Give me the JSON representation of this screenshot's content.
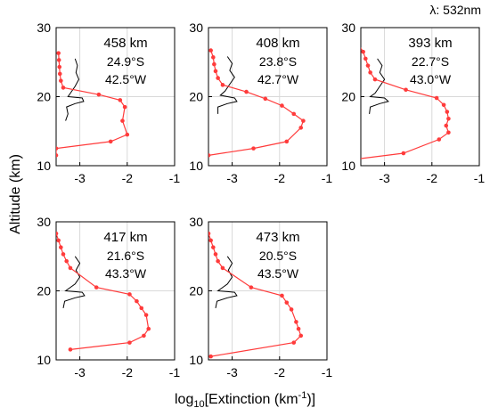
{
  "wavelength_label": "λ: 532nm",
  "ylabel": "Altitude (km)",
  "xlabel_prefix": "log",
  "xlabel_sub": "10",
  "xlabel_main": "[Extinction (km",
  "xlabel_sup": "-1",
  "xlabel_suffix": ")]",
  "colors": {
    "profile_red": "#ff3b3b",
    "reference_black": "#000000",
    "grid": "#d9d9d9"
  },
  "chart_data": [
    {
      "type": "line",
      "distance": "458 km",
      "lat": "24.9°S",
      "lon": "42.5°W",
      "xlim": [
        -3.5,
        -1
      ],
      "ylim": [
        10,
        30
      ],
      "xticks": [
        "-3",
        "-2",
        "-1"
      ],
      "yticks": [
        "10",
        "20",
        "30"
      ],
      "red_series": {
        "x": [
          -3.45,
          -3.44,
          -3.43,
          -3.42,
          -3.4,
          -3.35,
          -2.6,
          -2.15,
          -2.05,
          -2.1,
          -2.0,
          -2.35,
          -3.5,
          -3.5
        ],
        "y": [
          26.3,
          25.3,
          24.3,
          23.3,
          22.3,
          21.3,
          20.3,
          19.5,
          18.5,
          16.5,
          14.5,
          13.5,
          12.5,
          11.5
        ]
      },
      "black_series": {
        "x": [
          -3.1,
          -3.05,
          -3.08,
          -3.02,
          -3.1,
          -3.2,
          -3.25,
          -2.95,
          -2.92,
          -3.1,
          -3.28,
          -3.25,
          -3.3
        ],
        "y": [
          25.5,
          24.5,
          23.5,
          22.5,
          21.5,
          20.5,
          20.0,
          19.8,
          19.3,
          19.0,
          18.5,
          17.5,
          16.5
        ]
      }
    },
    {
      "type": "line",
      "distance": "408 km",
      "lat": "23.8°S",
      "lon": "42.7°W",
      "xlim": [
        -3.5,
        -1
      ],
      "ylim": [
        10,
        30
      ],
      "xticks": [
        "-3",
        "-2",
        "-1"
      ],
      "yticks": [
        "10",
        "20",
        "30"
      ],
      "red_series": {
        "x": [
          -3.45,
          -3.4,
          -3.38,
          -3.35,
          -3.3,
          -3.2,
          -2.7,
          -2.3,
          -1.95,
          -1.7,
          -1.5,
          -1.55,
          -1.85,
          -2.55,
          -3.5
        ],
        "y": [
          26.7,
          25.7,
          24.7,
          23.7,
          22.7,
          21.7,
          20.7,
          19.7,
          18.7,
          17.5,
          16.5,
          15.5,
          13.5,
          12.5,
          11.5
        ]
      },
      "black_series": {
        "x": [
          -3.1,
          -3.0,
          -3.05,
          -2.95,
          -3.05,
          -3.15,
          -3.25,
          -2.95,
          -2.9,
          -3.1,
          -3.3,
          -3.3
        ],
        "y": [
          25.8,
          24.8,
          23.8,
          22.8,
          21.8,
          20.8,
          20.2,
          19.8,
          19.3,
          19.0,
          18.5,
          17.5
        ]
      }
    },
    {
      "type": "line",
      "distance": "393 km",
      "lat": "22.7°S",
      "lon": "43.0°W",
      "xlim": [
        -3.5,
        -1
      ],
      "ylim": [
        10,
        30
      ],
      "xticks": [
        "-3",
        "-2",
        "-1"
      ],
      "yticks": [
        "10",
        "20",
        "30"
      ],
      "red_series": {
        "x": [
          -3.55,
          -3.45,
          -3.4,
          -3.35,
          -3.3,
          -3.2,
          -2.55,
          -1.9,
          -1.75,
          -1.68,
          -1.65,
          -1.7,
          -1.65,
          -1.85,
          -2.6,
          -3.55
        ],
        "y": [
          27.5,
          26.5,
          25.5,
          24.5,
          23.5,
          22.5,
          21.0,
          19.8,
          18.8,
          17.8,
          16.8,
          15.8,
          14.8,
          13.8,
          11.8,
          11.0
        ]
      },
      "black_series": {
        "x": [
          -3.15,
          -3.05,
          -3.1,
          -3.0,
          -3.1,
          -3.2,
          -3.3,
          -3.0,
          -2.92,
          -3.1,
          -3.3,
          -3.32
        ],
        "y": [
          25.5,
          24.5,
          23.5,
          22.5,
          21.5,
          20.5,
          20.0,
          19.8,
          19.3,
          19.0,
          18.5,
          17.5
        ]
      }
    },
    {
      "type": "line",
      "distance": "417 km",
      "lat": "21.6°S",
      "lon": "43.3°W",
      "xlim": [
        -3.5,
        -1
      ],
      "ylim": [
        10,
        30
      ],
      "xticks": [
        "-3",
        "-2",
        "-1"
      ],
      "yticks": [
        "10",
        "20",
        "30"
      ],
      "red_series": {
        "x": [
          -3.5,
          -3.45,
          -3.4,
          -3.35,
          -3.28,
          -3.2,
          -2.65,
          -1.95,
          -1.8,
          -1.7,
          -1.6,
          -1.55,
          -1.65,
          -1.95,
          -3.2
        ],
        "y": [
          28.3,
          27.3,
          26.3,
          25.3,
          24.3,
          23.3,
          20.5,
          19.5,
          18.5,
          17.5,
          16.5,
          14.5,
          13.5,
          12.5,
          11.5
        ]
      },
      "black_series": {
        "x": [
          -3.1,
          -3.0,
          -3.08,
          -3.0,
          -3.1,
          -3.2,
          -3.3,
          -2.95,
          -2.9,
          -3.1,
          -3.32,
          -3.35
        ],
        "y": [
          25.0,
          24.0,
          23.0,
          22.0,
          21.0,
          20.5,
          20.0,
          19.8,
          19.3,
          19.0,
          18.5,
          17.5
        ]
      }
    },
    {
      "type": "line",
      "distance": "473 km",
      "lat": "20.5°S",
      "lon": "43.5°W",
      "xlim": [
        -3.5,
        -1
      ],
      "ylim": [
        10,
        30
      ],
      "xticks": [
        "-3",
        "-2",
        "-1"
      ],
      "yticks": [
        "10",
        "20",
        "30"
      ],
      "red_series": {
        "x": [
          -3.5,
          -3.45,
          -3.4,
          -3.35,
          -3.3,
          -3.2,
          -2.6,
          -1.95,
          -1.85,
          -1.75,
          -1.65,
          -1.6,
          -1.55,
          -1.7,
          -3.45
        ],
        "y": [
          28.3,
          27.3,
          26.3,
          25.3,
          24.3,
          23.3,
          20.5,
          19.3,
          18.3,
          17.3,
          15.5,
          14.5,
          13.5,
          12.5,
          10.5
        ]
      },
      "black_series": {
        "x": [
          -3.1,
          -3.0,
          -3.08,
          -3.0,
          -3.1,
          -3.2,
          -3.3,
          -2.95,
          -2.9,
          -3.1,
          -3.32,
          -3.35
        ],
        "y": [
          25.0,
          24.0,
          23.0,
          22.0,
          21.0,
          20.5,
          20.0,
          19.8,
          19.3,
          19.0,
          18.5,
          17.5
        ]
      }
    }
  ]
}
